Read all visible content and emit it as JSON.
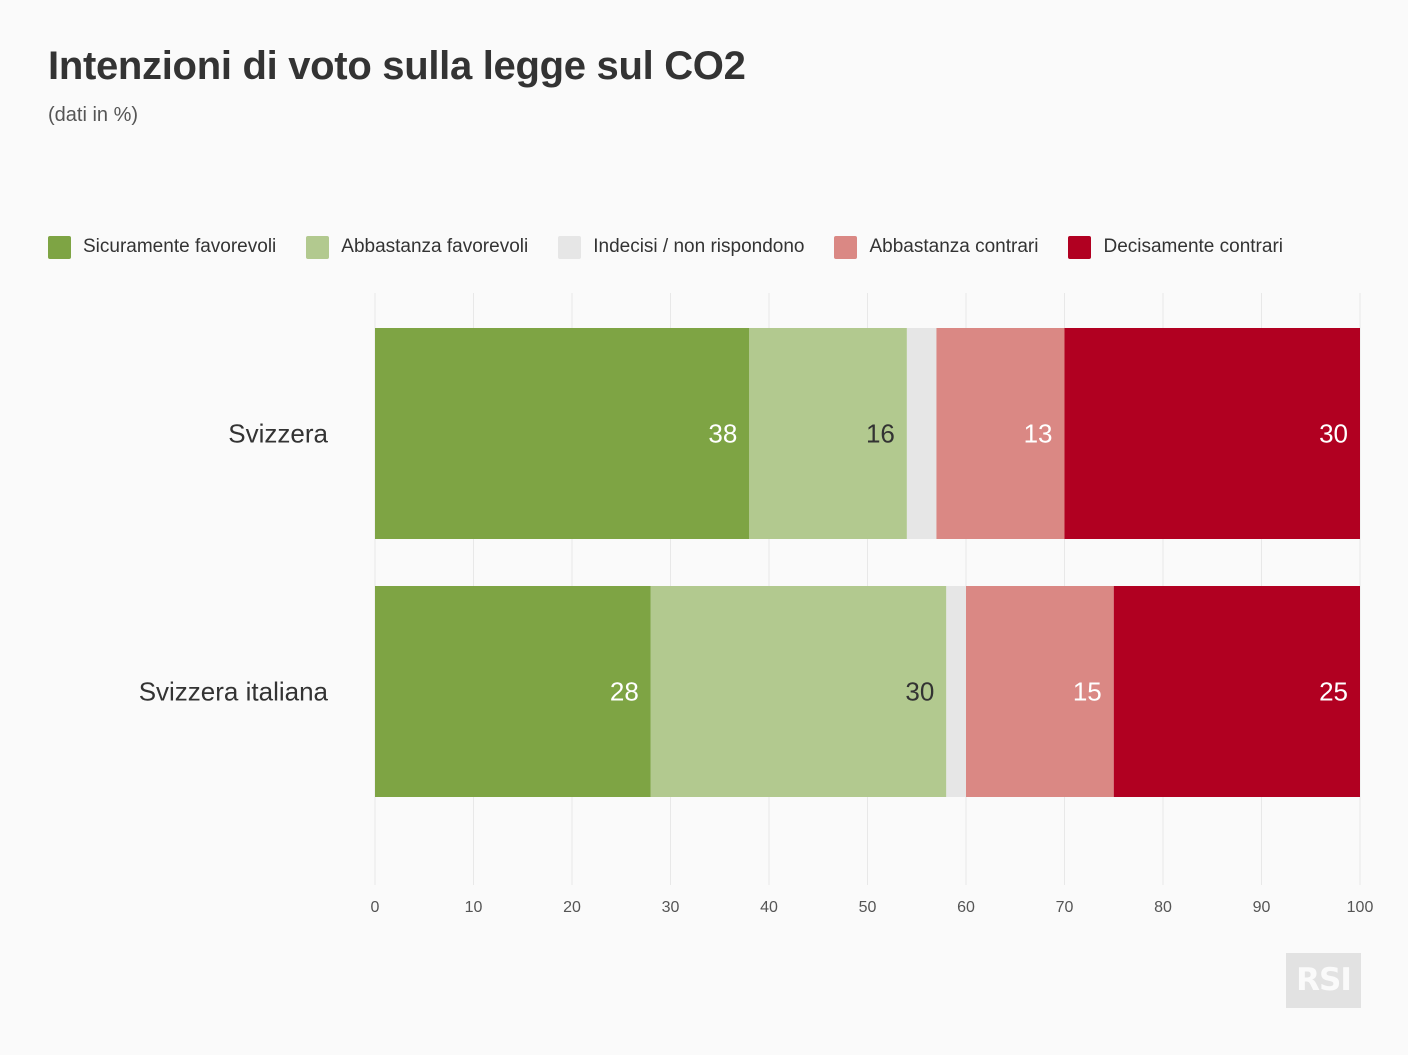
{
  "title": "Intenzioni di voto sulla legge sul CO2",
  "subtitle": "(dati in %)",
  "logo_text": "RSI",
  "chart_data": {
    "type": "bar",
    "orientation": "horizontal",
    "stacked": true,
    "categories": [
      "Svizzera",
      "Svizzera italiana"
    ],
    "series": [
      {
        "name": "Sicuramente favorevoli",
        "color": "#7ea444",
        "label_color": "#ffffff",
        "values": [
          38,
          28
        ],
        "labels": [
          "38",
          "28"
        ]
      },
      {
        "name": "Abbastanza favorevoli",
        "color": "#b2c98f",
        "label_color": "#333333",
        "values": [
          16,
          30
        ],
        "labels": [
          "16",
          "30"
        ]
      },
      {
        "name": "Indecisi / non rispondono",
        "color": "#e6e6e6",
        "label_color": "#333333",
        "values": [
          3,
          2
        ],
        "labels": [
          "",
          ""
        ]
      },
      {
        "name": "Abbastanza contrari",
        "color": "#da8884",
        "label_color": "#ffffff",
        "values": [
          13,
          15
        ],
        "labels": [
          "13",
          "15"
        ]
      },
      {
        "name": "Decisamente contrari",
        "color": "#b10021",
        "label_color": "#ffffff",
        "values": [
          30,
          25
        ],
        "labels": [
          "30",
          "25"
        ]
      }
    ],
    "xlim": [
      0,
      100
    ],
    "xticks": [
      0,
      10,
      20,
      30,
      40,
      50,
      60,
      70,
      80,
      90,
      100
    ],
    "xtick_labels": [
      "0",
      "10",
      "20",
      "30",
      "40",
      "50",
      "60",
      "70",
      "80",
      "90",
      "100"
    ],
    "grid": true,
    "legend_position": "top"
  }
}
